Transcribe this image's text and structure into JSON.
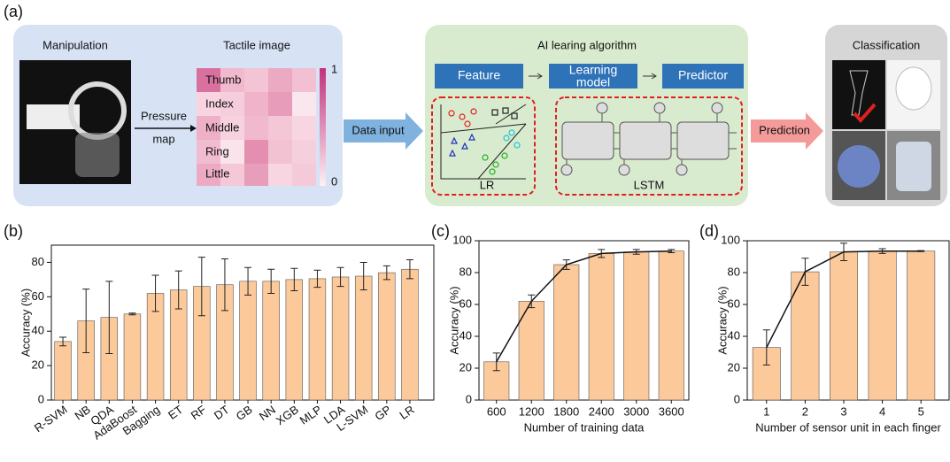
{
  "panel_a": {
    "label": "(a)",
    "manipulation": "Manipulation",
    "pressure_map": [
      "Pressure",
      "map"
    ],
    "tactile_image": {
      "title": "Tactile image",
      "rows": [
        "Thumb",
        "Index",
        "Middle",
        "Ring",
        "Little"
      ],
      "colorbar_range": [
        0,
        1
      ]
    },
    "data_input": "Data input",
    "ai": {
      "title": "AI learing algorithm",
      "feature": "Feature",
      "learning_model": [
        "Learning",
        "model"
      ],
      "predictor": "Predictor",
      "methods": [
        "LR",
        "LSTM"
      ]
    },
    "prediction": "Prediction",
    "classification": "Classification"
  },
  "chart_data": [
    {
      "type": "bar",
      "panel_label": "(b)",
      "ylabel": "Accuracy (%)",
      "categories": [
        "R-SVM",
        "NB",
        "QDA",
        "AdaBoost",
        "Bagging",
        "ET",
        "RF",
        "DT",
        "GB",
        "NN",
        "XGB",
        "MLP",
        "LDA",
        "L-SVM",
        "GP",
        "LR"
      ],
      "values": [
        34,
        46,
        48,
        50,
        62,
        64,
        66,
        67,
        69,
        69,
        70,
        70.5,
        71.5,
        72,
        74,
        76
      ],
      "errors": [
        2.5,
        18.5,
        21,
        0.5,
        10.5,
        11,
        17,
        15,
        8,
        7,
        6.5,
        5,
        5.5,
        8,
        4,
        5.5
      ],
      "color": "#fcc99b",
      "ylim": [
        0,
        90
      ],
      "yticks": [
        0,
        20,
        40,
        60,
        80
      ],
      "line": false,
      "grid": false
    },
    {
      "type": "bar",
      "panel_label": "(c)",
      "ylabel": "Accuracy (%)",
      "xlabel": "Number of training data",
      "categories": [
        "600",
        "1200",
        "1800",
        "2400",
        "3000",
        "3600"
      ],
      "values": [
        24,
        62,
        85,
        92,
        93,
        93.5
      ],
      "errors": [
        5.5,
        4,
        3,
        2.5,
        1.5,
        1
      ],
      "color": "#fcc99b",
      "ylim": [
        0,
        100
      ],
      "yticks": [
        0,
        20,
        40,
        60,
        80,
        100
      ],
      "line": true,
      "grid": false
    },
    {
      "type": "bar",
      "panel_label": "(d)",
      "ylabel": "Accuracy (%)",
      "xlabel": "Number of sensor unit in each finger",
      "categories": [
        "1",
        "2",
        "3",
        "4",
        "5"
      ],
      "values": [
        33,
        80.5,
        93,
        93.5,
        93.5
      ],
      "errors": [
        11,
        8.5,
        5.5,
        1.5,
        0.3
      ],
      "color": "#fcc99b",
      "ylim": [
        0,
        100
      ],
      "yticks": [
        0,
        20,
        40,
        60,
        80,
        100
      ],
      "line": true,
      "grid": false
    }
  ]
}
